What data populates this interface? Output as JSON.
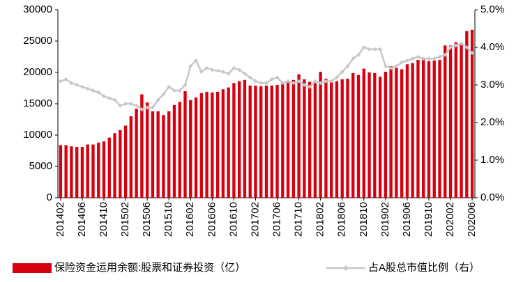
{
  "chart_data": {
    "type": "bar_line",
    "categories": [
      "201402",
      null,
      null,
      null,
      "201406",
      null,
      null,
      null,
      "201410",
      null,
      null,
      null,
      "201502",
      null,
      null,
      null,
      "201506",
      null,
      null,
      null,
      "201510",
      null,
      null,
      null,
      "201602",
      null,
      null,
      null,
      "201606",
      null,
      null,
      null,
      "201610",
      null,
      null,
      null,
      "201702",
      null,
      null,
      null,
      "201706",
      null,
      null,
      null,
      "201710",
      null,
      null,
      null,
      "201802",
      null,
      null,
      null,
      "201806",
      null,
      null,
      null,
      "201810",
      null,
      null,
      null,
      "201902",
      null,
      null,
      null,
      "201906",
      null,
      null,
      null,
      "201910",
      null,
      null,
      null,
      "202002",
      null,
      null,
      null,
      "202006"
    ],
    "series": [
      {
        "name": "保险资金运用余额:股票和证券投资（亿）",
        "color": "#d7000f",
        "type": "bar",
        "values": [
          8400,
          8400,
          8200,
          8100,
          8100,
          8500,
          8500,
          8800,
          9000,
          9600,
          10300,
          10800,
          11500,
          13000,
          14200,
          16500,
          15200,
          13800,
          13800,
          13200,
          13800,
          14800,
          15300,
          17000,
          15600,
          16000,
          16700,
          16900,
          16800,
          16900,
          17300,
          17600,
          18300,
          18600,
          18800,
          17900,
          17900,
          17800,
          17900,
          17900,
          18000,
          18300,
          18700,
          18800,
          19700,
          18900,
          18500,
          18300,
          20100,
          19000,
          18700,
          18600,
          18900,
          19000,
          19900,
          19600,
          20600,
          20000,
          19900,
          19300,
          20100,
          21000,
          20700,
          20500,
          21300,
          21500,
          22000,
          22100,
          21800,
          21900,
          22000,
          24300,
          24300,
          24800,
          24700,
          26600,
          26800
        ]
      },
      {
        "name": "占A股总市值比例（右）",
        "color": "#c8c8c8",
        "type": "line",
        "axis": "y2",
        "values": [
          3.1,
          3.15,
          3.05,
          3.0,
          2.95,
          2.9,
          2.85,
          2.8,
          2.7,
          2.65,
          2.6,
          2.45,
          2.5,
          2.5,
          2.45,
          2.35,
          2.4,
          2.4,
          2.6,
          2.75,
          2.95,
          2.85,
          2.85,
          3.0,
          3.5,
          3.65,
          3.35,
          3.45,
          3.4,
          3.38,
          3.35,
          3.3,
          3.45,
          3.4,
          3.3,
          3.2,
          3.1,
          3.05,
          3.05,
          3.15,
          3.2,
          3.05,
          3.1,
          3.05,
          3.1,
          3.0,
          2.95,
          3.1,
          3.05,
          3.1,
          3.1,
          3.2,
          3.35,
          3.5,
          3.7,
          3.8,
          4.0,
          3.95,
          3.95,
          3.95,
          3.5,
          3.45,
          3.5,
          3.6,
          3.65,
          3.7,
          3.75,
          3.7,
          3.7,
          3.7,
          3.75,
          3.8,
          4.0,
          4.05,
          4.1,
          4.0,
          3.85
        ]
      }
    ],
    "ylim": [
      0,
      30000
    ],
    "yticks": [
      0,
      5000,
      10000,
      15000,
      20000,
      25000,
      30000
    ],
    "y2lim": [
      0,
      5
    ],
    "y2ticks": [
      {
        "value": 0,
        "label": "0.0%"
      },
      {
        "value": 1,
        "label": "1.0%"
      },
      {
        "value": 2,
        "label": "2.0%"
      },
      {
        "value": 3,
        "label": "3.0%"
      },
      {
        "value": 4,
        "label": "4.0%"
      },
      {
        "value": 5,
        "label": "5.0%"
      }
    ],
    "legend": "bottom"
  }
}
